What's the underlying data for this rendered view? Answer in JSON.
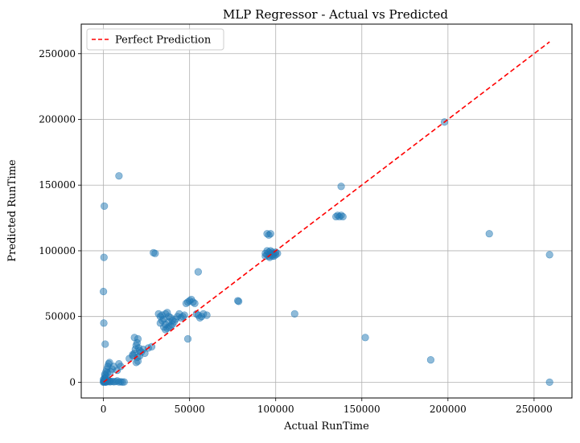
{
  "chart_data": {
    "type": "scatter",
    "title": "MLP Regressor - Actual vs Predicted",
    "xlabel": "Actual RunTime",
    "ylabel": "Predicted RunTime",
    "xlim": [
      -12900,
      272000
    ],
    "ylim": [
      -12000,
      272500
    ],
    "xticks": [
      0,
      50000,
      100000,
      150000,
      200000,
      250000
    ],
    "yticks": [
      0,
      50000,
      100000,
      150000,
      200000,
      250000
    ],
    "grid": true,
    "legend": {
      "position": "top-left",
      "entries": [
        {
          "label": "Perfect Prediction"
        }
      ]
    },
    "colors": {
      "points": "#1f77b4",
      "line": "#ff0000"
    },
    "reference_line": {
      "name": "Perfect Prediction",
      "from": [
        0,
        0
      ],
      "to": [
        259000,
        259000
      ],
      "style": "dashed"
    },
    "points": [
      [
        0,
        0
      ],
      [
        200,
        300
      ],
      [
        500,
        800
      ],
      [
        800,
        1200
      ],
      [
        1000,
        500
      ],
      [
        1500,
        200
      ],
      [
        2000,
        800
      ],
      [
        2500,
        1500
      ],
      [
        3000,
        400
      ],
      [
        3500,
        900
      ],
      [
        4000,
        300
      ],
      [
        5000,
        600
      ],
      [
        6000,
        300
      ],
      [
        7000,
        500
      ],
      [
        8000,
        1000
      ],
      [
        9000,
        200
      ],
      [
        10000,
        300
      ],
      [
        11000,
        100
      ],
      [
        12000,
        200
      ],
      [
        1200,
        0
      ],
      [
        300,
        1000
      ],
      [
        0,
        2000
      ],
      [
        100,
        500
      ],
      [
        600,
        3000
      ],
      [
        1000,
        5000
      ],
      [
        1500,
        8000
      ],
      [
        2000,
        10000
      ],
      [
        2500,
        12000
      ],
      [
        3000,
        14000
      ],
      [
        3500,
        15000
      ],
      [
        5000,
        10000
      ],
      [
        6000,
        12000
      ],
      [
        8000,
        9000
      ],
      [
        9000,
        14000
      ],
      [
        10000,
        12000
      ],
      [
        1000,
        3000
      ],
      [
        800,
        6000
      ],
      [
        4000,
        8000
      ],
      [
        1800,
        4000
      ],
      [
        2200,
        7000
      ],
      [
        15000,
        18000
      ],
      [
        17000,
        20000
      ],
      [
        18000,
        22000
      ],
      [
        18500,
        25000
      ],
      [
        19000,
        28000
      ],
      [
        19500,
        30000
      ],
      [
        20000,
        33000
      ],
      [
        18000,
        34000
      ],
      [
        20500,
        26000
      ],
      [
        21000,
        24000
      ],
      [
        22000,
        23000
      ],
      [
        23000,
        25000
      ],
      [
        24000,
        22000
      ],
      [
        19000,
        15000
      ],
      [
        20000,
        16000
      ],
      [
        21000,
        20000
      ],
      [
        26000,
        26000
      ],
      [
        28000,
        27000
      ],
      [
        17000,
        21000
      ],
      [
        19800,
        19000
      ],
      [
        30000,
        98000
      ],
      [
        29000,
        98500
      ],
      [
        500,
        134000
      ],
      [
        9000,
        157000
      ],
      [
        300,
        95000
      ],
      [
        0,
        69000
      ],
      [
        200,
        45000
      ],
      [
        1000,
        29000
      ],
      [
        32000,
        52000
      ],
      [
        33000,
        50000
      ],
      [
        34000,
        51000
      ],
      [
        35000,
        48000
      ],
      [
        36000,
        52000
      ],
      [
        37000,
        53000
      ],
      [
        38000,
        50000
      ],
      [
        39000,
        49000
      ],
      [
        33000,
        45000
      ],
      [
        34000,
        47000
      ],
      [
        35000,
        42000
      ],
      [
        36000,
        40000
      ],
      [
        37000,
        41000
      ],
      [
        38000,
        42000
      ],
      [
        39000,
        43000
      ],
      [
        40000,
        44000
      ],
      [
        41000,
        46000
      ],
      [
        42000,
        48000
      ],
      [
        43000,
        50000
      ],
      [
        44000,
        52000
      ],
      [
        45000,
        49000
      ],
      [
        46000,
        50000
      ],
      [
        47000,
        51000
      ],
      [
        48000,
        60000
      ],
      [
        49000,
        61000
      ],
      [
        50000,
        62000
      ],
      [
        51000,
        63000
      ],
      [
        52000,
        61000
      ],
      [
        53000,
        60000
      ],
      [
        54000,
        52000
      ],
      [
        55000,
        51000
      ],
      [
        56000,
        49000
      ],
      [
        57000,
        50000
      ],
      [
        58000,
        52000
      ],
      [
        60000,
        51000
      ],
      [
        55000,
        84000
      ],
      [
        49000,
        33000
      ],
      [
        36000,
        44000
      ],
      [
        38000,
        46000
      ],
      [
        40000,
        47000
      ],
      [
        78000,
        62000
      ],
      [
        78500,
        61500
      ],
      [
        94000,
        96000
      ],
      [
        95000,
        97000
      ],
      [
        96000,
        96000
      ],
      [
        97000,
        98000
      ],
      [
        98000,
        97000
      ],
      [
        99000,
        96000
      ],
      [
        100000,
        97000
      ],
      [
        101000,
        98000
      ],
      [
        95000,
        100000
      ],
      [
        96000,
        99000
      ],
      [
        97000,
        100000
      ],
      [
        98000,
        99000
      ],
      [
        99000,
        98000
      ],
      [
        95000,
        113000
      ],
      [
        96000,
        112000
      ],
      [
        97000,
        113000
      ],
      [
        98000,
        96000
      ],
      [
        94000,
        98000
      ],
      [
        100000,
        99000
      ],
      [
        96500,
        95000
      ],
      [
        111000,
        52000
      ],
      [
        135000,
        126000
      ],
      [
        136000,
        127000
      ],
      [
        137000,
        126000
      ],
      [
        138000,
        127000
      ],
      [
        139000,
        126000
      ],
      [
        138000,
        149000
      ],
      [
        152000,
        34000
      ],
      [
        190000,
        17000
      ],
      [
        198000,
        198000
      ],
      [
        224000,
        113000
      ],
      [
        259000,
        97000
      ],
      [
        259000,
        0
      ]
    ]
  }
}
